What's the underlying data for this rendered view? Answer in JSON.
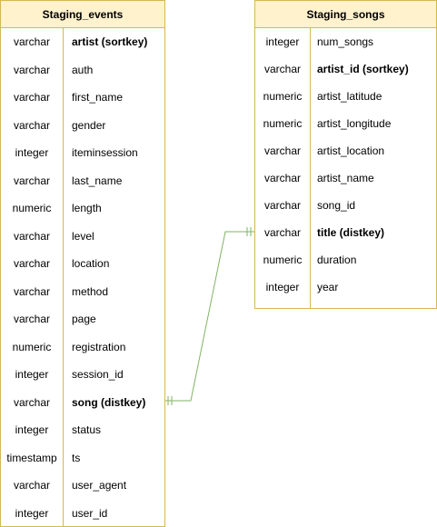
{
  "tables": {
    "staging_events": {
      "title": "Staging_events",
      "fields": [
        {
          "type": "varchar",
          "name": "artist (sortkey)",
          "bold": true
        },
        {
          "type": "varchar",
          "name": "auth"
        },
        {
          "type": "varchar",
          "name": "first_name"
        },
        {
          "type": "varchar",
          "name": "gender"
        },
        {
          "type": "integer",
          "name": "iteminsession"
        },
        {
          "type": "varchar",
          "name": "last_name"
        },
        {
          "type": "numeric",
          "name": "length"
        },
        {
          "type": "varchar",
          "name": "level"
        },
        {
          "type": "varchar",
          "name": "location"
        },
        {
          "type": "varchar",
          "name": "method"
        },
        {
          "type": "varchar",
          "name": "page"
        },
        {
          "type": "numeric",
          "name": "registration"
        },
        {
          "type": "integer",
          "name": "session_id"
        },
        {
          "type": "varchar",
          "name": "song (distkey)",
          "bold": true
        },
        {
          "type": "integer",
          "name": "status"
        },
        {
          "type": "timestamp",
          "name": "ts"
        },
        {
          "type": "varchar",
          "name": "user_agent"
        },
        {
          "type": "integer",
          "name": "user_id"
        }
      ]
    },
    "staging_songs": {
      "title": "Staging_songs",
      "fields": [
        {
          "type": "integer",
          "name": "num_songs"
        },
        {
          "type": "varchar",
          "name": "artist_id (sortkey)",
          "bold": true
        },
        {
          "type": "numeric",
          "name": "artist_latitude"
        },
        {
          "type": "numeric",
          "name": "artist_longitude"
        },
        {
          "type": "varchar",
          "name": "artist_location"
        },
        {
          "type": "varchar",
          "name": "artist_name"
        },
        {
          "type": "varchar",
          "name": "song_id"
        },
        {
          "type": "varchar",
          "name": "title (distkey)",
          "bold": true
        },
        {
          "type": "numeric",
          "name": "duration"
        },
        {
          "type": "integer",
          "name": "year"
        }
      ]
    }
  },
  "relationship": {
    "from": "Staging_events.song (distkey)",
    "to": "Staging_songs.title (distkey)",
    "cardinality": "one-to-one",
    "color": "#82b366"
  },
  "colors": {
    "table_border": "#d6b656",
    "header_fill": "#fff2cc"
  }
}
